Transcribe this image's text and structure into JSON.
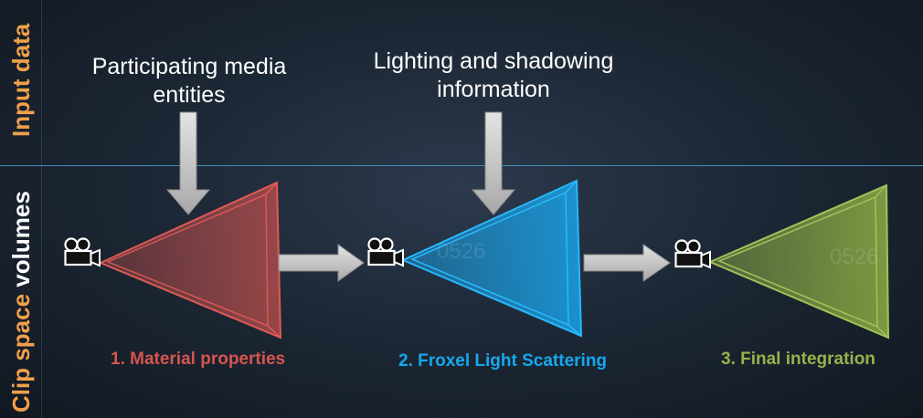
{
  "side_labels": {
    "input_data": "Input data",
    "clip_space_prefix": "Clip space",
    "clip_space_suffix": "volumes"
  },
  "inputs": {
    "participating_media": "Participating media entities",
    "lighting": "Lighting and shadowing information"
  },
  "stages": [
    {
      "label": "1. Material properties",
      "color": "#d5554f"
    },
    {
      "label": "2. Froxel Light Scattering",
      "color": "#16a8ee"
    },
    {
      "label": "3. Final integration",
      "color": "#96b24a"
    }
  ],
  "watermarks": [
    "0526",
    "0526"
  ],
  "icons": [
    "camera-icon",
    "arrow-down-icon",
    "arrow-right-icon"
  ]
}
